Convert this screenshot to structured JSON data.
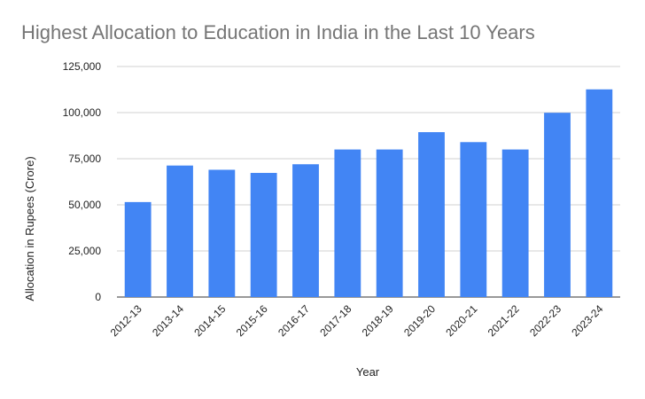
{
  "chart_data": {
    "type": "bar",
    "title": "Highest Allocation to Education in India in the Last 10 Years",
    "xlabel": "Year",
    "ylabel": "Allocation in Rupees (Crore)",
    "categories": [
      "2012-13",
      "2013-14",
      "2014-15",
      "2015-16",
      "2016-17",
      "2017-18",
      "2018-19",
      "2019-20",
      "2020-21",
      "2021-22",
      "2022-23",
      "2023-24"
    ],
    "values": [
      51500,
      71300,
      69000,
      67300,
      72000,
      80000,
      80000,
      89400,
      84000,
      80000,
      99900,
      112600
    ],
    "ylim": [
      0,
      125000
    ],
    "yticks": [
      0,
      25000,
      50000,
      75000,
      100000,
      125000
    ],
    "ytick_labels": [
      "0",
      "25,000",
      "50,000",
      "75,000",
      "100,000",
      "125,000"
    ],
    "grid": true,
    "legend": "none",
    "bar_color": "#4285f4",
    "grid_color": "#d0d0d0"
  }
}
